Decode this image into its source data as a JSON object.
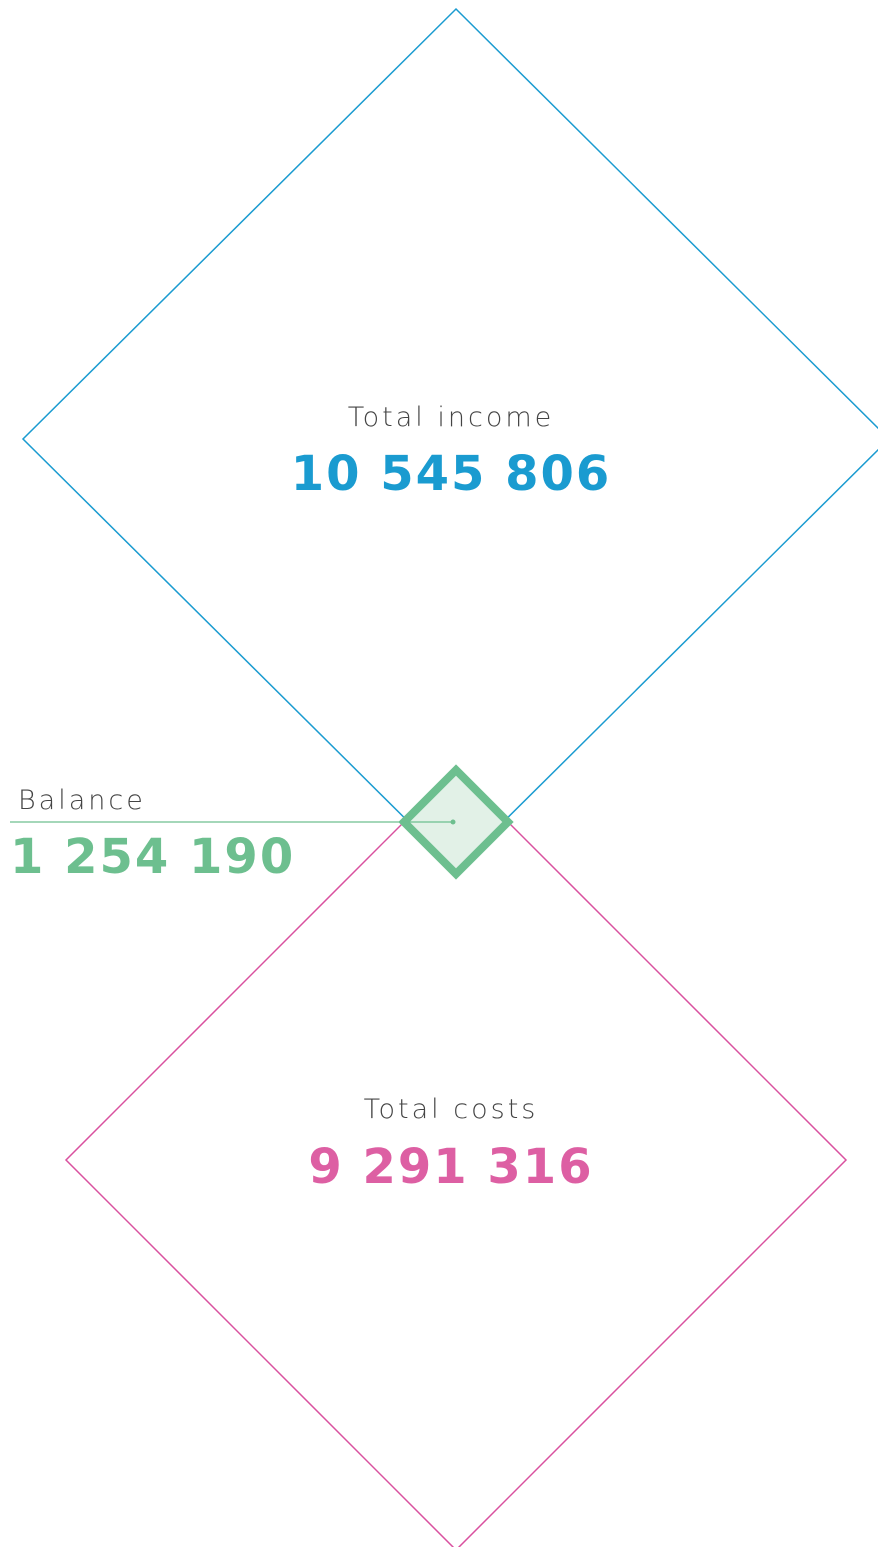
{
  "income": {
    "label": "Total income",
    "value": "10 545 806"
  },
  "balance": {
    "label": "Balance",
    "value": "1 254 190"
  },
  "costs": {
    "label": "Total costs",
    "value": "9 291 316"
  }
}
